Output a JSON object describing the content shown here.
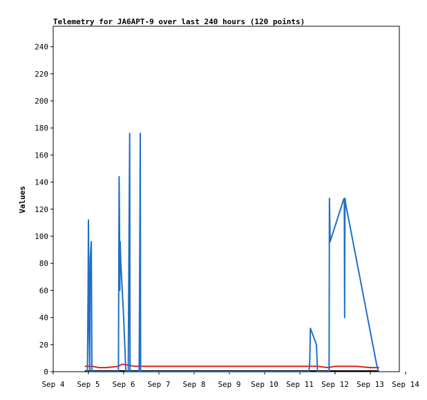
{
  "chart_data": {
    "type": "line",
    "title": "Telemetry for JA6APT-9 over last 240 hours (120 points)",
    "ylabel": "Values",
    "xlabel": "",
    "x_ticks": [
      "Sep 4",
      "Sep 5",
      "Sep 6",
      "Sep 7",
      "Sep 8",
      "Sep 9",
      "Sep 10",
      "Sep 11",
      "Sep 12",
      "Sep 13",
      "Sep 14"
    ],
    "y_ticks": [
      "0",
      "20",
      "40",
      "60",
      "80",
      "100",
      "120",
      "140",
      "160",
      "180",
      "200",
      "220",
      "240"
    ],
    "xlim": [
      0,
      10
    ],
    "ylim": [
      0,
      255
    ],
    "grid": false,
    "colors": {
      "series1": "#1f6fc6",
      "series2": "#e02020",
      "series3": "#000000"
    },
    "series": [
      {
        "color_key": "series1",
        "x": [
          0.95,
          0.97,
          0.99,
          1.0,
          1.02,
          1.04,
          1.05,
          1.08,
          1.1,
          1.11,
          1.12,
          1.85,
          1.87,
          1.88,
          1.89,
          1.9,
          1.92,
          2.0,
          2.06,
          2.13,
          2.15,
          2.17,
          2.18,
          2.2,
          2.44,
          2.46,
          2.47,
          2.48,
          2.49,
          7.26,
          7.28,
          7.3,
          7.47,
          7.5,
          7.83,
          7.84,
          7.86,
          7.87,
          8.24,
          8.26,
          8.27,
          8.28,
          8.3,
          9.18,
          9.23,
          9.25
        ],
        "y": [
          0,
          0,
          60,
          112,
          30,
          0,
          83,
          96,
          0,
          0,
          0,
          0,
          144,
          112,
          60,
          96,
          80,
          40,
          0,
          0,
          88,
          176,
          0,
          0,
          0,
          112,
          176,
          0,
          0,
          0,
          8,
          32,
          20,
          0,
          0,
          128,
          96,
          97,
          127,
          128,
          40,
          128,
          124,
          5,
          0,
          0
        ]
      },
      {
        "color_key": "series2",
        "x": [
          0.9,
          1.1,
          1.3,
          1.5,
          1.7,
          1.85,
          1.95,
          2.1,
          2.3,
          3.0,
          4.0,
          5.0,
          6.0,
          7.0,
          7.5,
          7.8,
          8.0,
          8.3,
          8.6,
          9.0,
          9.25
        ],
        "y": [
          4,
          4,
          3,
          3,
          3.5,
          4,
          5.5,
          5,
          4,
          4,
          4,
          4,
          4,
          4,
          4,
          3,
          4,
          4,
          4,
          3,
          3
        ]
      },
      {
        "color_key": "series3",
        "x": [
          0.9,
          9.25
        ],
        "y": [
          0.5,
          0.5
        ]
      }
    ]
  }
}
